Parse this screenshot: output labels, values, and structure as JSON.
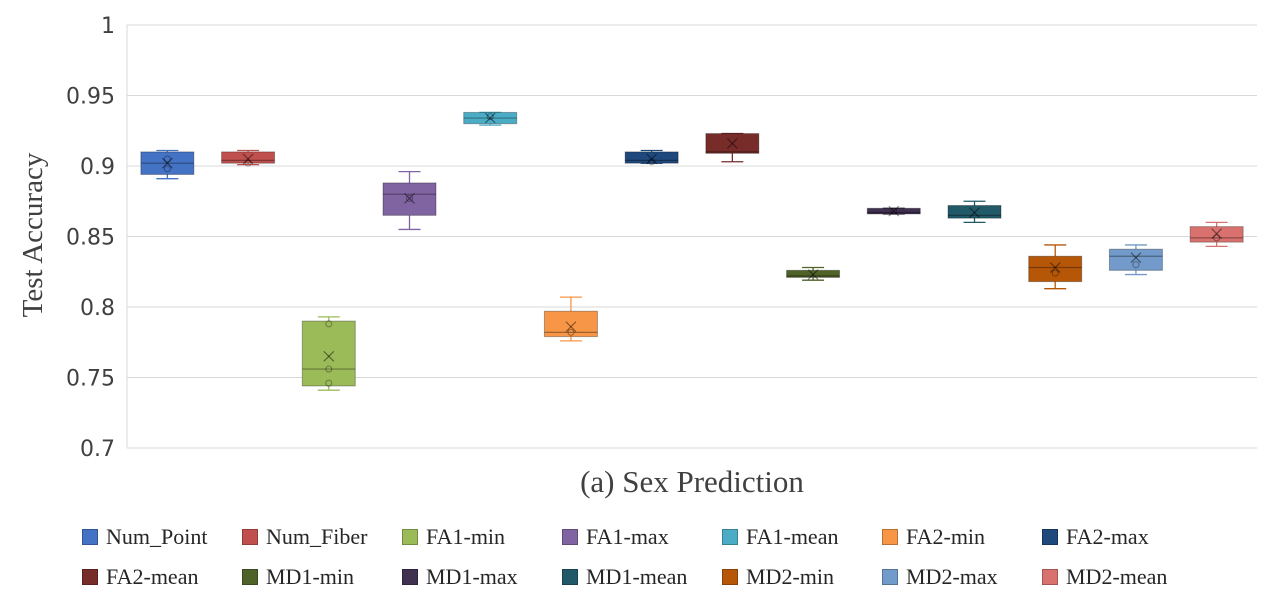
{
  "chart_data": {
    "type": "box",
    "title": "",
    "xlabel": "(a) Sex Prediction",
    "ylabel": "Test Accuracy",
    "ylim": [
      0.7,
      1.0
    ],
    "yticks": [
      {
        "value": 0.7,
        "label": "0.7"
      },
      {
        "value": 0.75,
        "label": "0.75"
      },
      {
        "value": 0.8,
        "label": "0.8"
      },
      {
        "value": 0.85,
        "label": "0.85"
      },
      {
        "value": 0.9,
        "label": "0.9"
      },
      {
        "value": 0.95,
        "label": "0.95"
      },
      {
        "value": 1.0,
        "label": "1"
      }
    ],
    "grid": true,
    "legend_position": "bottom",
    "series": [
      {
        "name": "Num_Point",
        "color": "#4472C4",
        "whisker_low": 0.891,
        "q1": 0.894,
        "median": 0.902,
        "q3": 0.91,
        "whisker_high": 0.911,
        "mean": 0.902,
        "points": [
          0.898,
          0.905
        ]
      },
      {
        "name": "Num_Fiber",
        "color": "#C0504D",
        "whisker_low": 0.901,
        "q1": 0.902,
        "median": 0.904,
        "q3": 0.91,
        "whisker_high": 0.911,
        "mean": 0.905,
        "points": [
          0.902
        ]
      },
      {
        "name": "FA1-min",
        "color": "#9BBB59",
        "whisker_low": 0.741,
        "q1": 0.744,
        "median": 0.756,
        "q3": 0.79,
        "whisker_high": 0.793,
        "mean": 0.765,
        "points": [
          0.746,
          0.756,
          0.788
        ]
      },
      {
        "name": "FA1-max",
        "color": "#8064A2",
        "whisker_low": 0.855,
        "q1": 0.865,
        "median": 0.88,
        "q3": 0.888,
        "whisker_high": 0.896,
        "mean": 0.877,
        "points": [
          0.877
        ]
      },
      {
        "name": "FA1-mean",
        "color": "#4BACC6",
        "whisker_low": 0.929,
        "q1": 0.93,
        "median": 0.934,
        "q3": 0.938,
        "whisker_high": 0.938,
        "mean": 0.934,
        "points": [
          0.935
        ]
      },
      {
        "name": "FA2-min",
        "color": "#F79646",
        "whisker_low": 0.776,
        "q1": 0.779,
        "median": 0.782,
        "q3": 0.797,
        "whisker_high": 0.807,
        "mean": 0.786,
        "points": [
          0.782
        ]
      },
      {
        "name": "FA2-max",
        "color": "#1F497D",
        "whisker_low": 0.902,
        "q1": 0.902,
        "median": 0.904,
        "q3": 0.91,
        "whisker_high": 0.911,
        "mean": 0.905,
        "points": [
          0.903
        ]
      },
      {
        "name": "FA2-mean",
        "color": "#772C2A",
        "whisker_low": 0.903,
        "q1": 0.909,
        "median": 0.91,
        "q3": 0.923,
        "whisker_high": 0.923,
        "mean": 0.916,
        "points": []
      },
      {
        "name": "MD1-min",
        "color": "#4F6228",
        "whisker_low": 0.819,
        "q1": 0.821,
        "median": 0.822,
        "q3": 0.826,
        "whisker_high": 0.828,
        "mean": 0.823,
        "points": []
      },
      {
        "name": "MD1-max",
        "color": "#403151",
        "whisker_low": 0.866,
        "q1": 0.866,
        "median": 0.867,
        "q3": 0.87,
        "whisker_high": 0.87,
        "mean": 0.868,
        "points": [
          0.868
        ]
      },
      {
        "name": "MD1-mean",
        "color": "#215968",
        "whisker_low": 0.86,
        "q1": 0.863,
        "median": 0.865,
        "q3": 0.872,
        "whisker_high": 0.875,
        "mean": 0.867,
        "points": []
      },
      {
        "name": "MD2-min",
        "color": "#B65708",
        "whisker_low": 0.813,
        "q1": 0.818,
        "median": 0.828,
        "q3": 0.836,
        "whisker_high": 0.844,
        "mean": 0.828,
        "points": [
          0.824
        ]
      },
      {
        "name": "MD2-max",
        "color": "#729ACA",
        "whisker_low": 0.823,
        "q1": 0.826,
        "median": 0.836,
        "q3": 0.841,
        "whisker_high": 0.844,
        "mean": 0.835,
        "points": [
          0.83
        ]
      },
      {
        "name": "MD2-mean",
        "color": "#D9726F",
        "whisker_low": 0.843,
        "q1": 0.846,
        "median": 0.849,
        "q3": 0.857,
        "whisker_high": 0.86,
        "mean": 0.852,
        "points": [
          0.849
        ]
      }
    ]
  }
}
